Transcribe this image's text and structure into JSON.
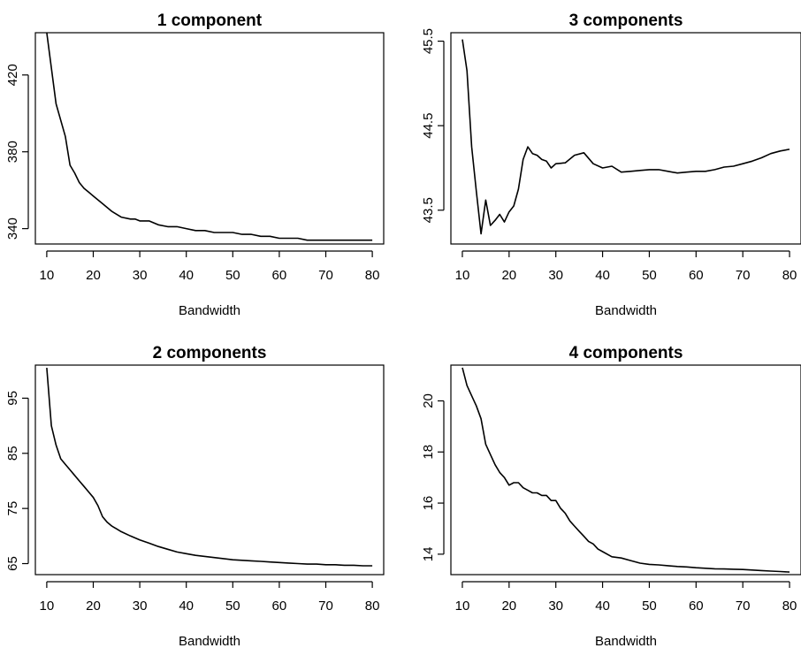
{
  "chart_data": [
    {
      "type": "line",
      "title": "1 component",
      "xlabel": "Bandwidth",
      "ylabel": "",
      "xlim": [
        10,
        80
      ],
      "ylim": [
        332,
        442
      ],
      "xticks": [
        10,
        20,
        30,
        40,
        50,
        60,
        70,
        80
      ],
      "yticks": [
        340,
        380,
        420
      ],
      "x": [
        10,
        12,
        14,
        15,
        16,
        17,
        18,
        19,
        20,
        22,
        24,
        26,
        28,
        29,
        30,
        32,
        34,
        36,
        38,
        40,
        42,
        44,
        46,
        48,
        50,
        52,
        54,
        56,
        58,
        60,
        62,
        64,
        66,
        68,
        70,
        72,
        74,
        76,
        78,
        80
      ],
      "y": [
        442,
        405,
        388,
        373,
        369,
        364,
        361,
        359,
        357,
        353,
        349,
        346,
        345,
        345,
        344,
        344,
        342,
        341,
        341,
        340,
        339,
        339,
        338,
        338,
        338,
        337,
        337,
        336,
        336,
        335,
        335,
        335,
        334,
        334,
        334,
        334,
        334,
        334,
        334,
        334
      ]
    },
    {
      "type": "line",
      "title": "3 components",
      "xlabel": "Bandwidth",
      "ylabel": "",
      "xlim": [
        10,
        80
      ],
      "ylim": [
        43.1,
        45.6
      ],
      "xticks": [
        10,
        20,
        30,
        40,
        50,
        60,
        70,
        80
      ],
      "yticks": [
        43.5,
        44.5,
        45.5
      ],
      "x": [
        10,
        11,
        12,
        13,
        14,
        15,
        16,
        17,
        18,
        19,
        20,
        21,
        22,
        23,
        24,
        25,
        26,
        27,
        28,
        29,
        30,
        32,
        34,
        36,
        38,
        40,
        42,
        44,
        46,
        48,
        50,
        52,
        54,
        56,
        58,
        60,
        62,
        64,
        66,
        68,
        70,
        72,
        74,
        76,
        78,
        80
      ],
      "y": [
        45.52,
        45.15,
        44.25,
        43.72,
        43.22,
        43.62,
        43.32,
        43.38,
        43.45,
        43.36,
        43.48,
        43.55,
        43.75,
        44.1,
        44.25,
        44.17,
        44.15,
        44.1,
        44.08,
        44.0,
        44.05,
        44.06,
        44.15,
        44.18,
        44.05,
        44.0,
        44.02,
        43.95,
        43.96,
        43.97,
        43.98,
        43.98,
        43.96,
        43.94,
        43.95,
        43.96,
        43.96,
        43.98,
        44.01,
        44.02,
        44.05,
        44.08,
        44.12,
        44.17,
        44.2,
        44.22
      ]
    },
    {
      "type": "line",
      "title": "2 components",
      "xlabel": "Bandwidth",
      "ylabel": "",
      "xlim": [
        10,
        80
      ],
      "ylim": [
        63,
        101
      ],
      "xticks": [
        10,
        20,
        30,
        40,
        50,
        60,
        70,
        80
      ],
      "yticks": [
        65,
        75,
        85,
        95
      ],
      "x": [
        10,
        11,
        12,
        13,
        14,
        15,
        16,
        17,
        18,
        19,
        20,
        21,
        22,
        23,
        24,
        25,
        26,
        28,
        30,
        32,
        34,
        36,
        38,
        40,
        42,
        44,
        46,
        48,
        50,
        52,
        54,
        56,
        58,
        60,
        62,
        64,
        66,
        68,
        70,
        72,
        74,
        76,
        78,
        80
      ],
      "y": [
        100.5,
        90,
        86.5,
        84,
        83,
        82,
        81,
        80,
        79,
        78,
        77,
        75.5,
        73.5,
        72.5,
        71.8,
        71.3,
        70.8,
        70,
        69.3,
        68.7,
        68.1,
        67.6,
        67.1,
        66.8,
        66.5,
        66.3,
        66.1,
        65.9,
        65.7,
        65.6,
        65.5,
        65.4,
        65.3,
        65.2,
        65.1,
        65.0,
        64.9,
        64.9,
        64.8,
        64.8,
        64.7,
        64.7,
        64.6,
        64.6
      ]
    },
    {
      "type": "line",
      "title": "4 components",
      "xlabel": "Bandwidth",
      "ylabel": "",
      "xlim": [
        10,
        80
      ],
      "ylim": [
        13.2,
        21.4
      ],
      "xticks": [
        10,
        20,
        30,
        40,
        50,
        60,
        70,
        80
      ],
      "yticks": [
        14,
        16,
        18,
        20
      ],
      "x": [
        10,
        11,
        12,
        13,
        14,
        15,
        16,
        17,
        18,
        19,
        20,
        21,
        22,
        23,
        24,
        25,
        26,
        27,
        28,
        29,
        30,
        31,
        32,
        33,
        34,
        35,
        36,
        37,
        38,
        39,
        40,
        42,
        44,
        46,
        48,
        50,
        52,
        54,
        56,
        58,
        60,
        62,
        64,
        66,
        68,
        70,
        72,
        74,
        76,
        78,
        80
      ],
      "y": [
        21.3,
        20.6,
        20.2,
        19.8,
        19.3,
        18.3,
        17.9,
        17.5,
        17.2,
        17.0,
        16.7,
        16.8,
        16.8,
        16.6,
        16.5,
        16.4,
        16.4,
        16.3,
        16.3,
        16.1,
        16.1,
        15.8,
        15.6,
        15.3,
        15.1,
        14.9,
        14.7,
        14.5,
        14.4,
        14.2,
        14.1,
        13.9,
        13.85,
        13.75,
        13.65,
        13.6,
        13.58,
        13.55,
        13.52,
        13.5,
        13.47,
        13.45,
        13.43,
        13.42,
        13.41,
        13.4,
        13.38,
        13.36,
        13.34,
        13.32,
        13.3
      ]
    }
  ]
}
